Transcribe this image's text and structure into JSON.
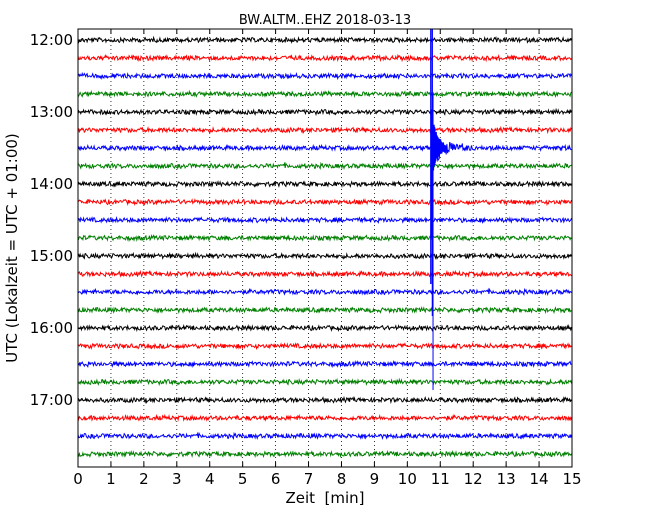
{
  "chart_data": {
    "type": "line",
    "title": "BW.ALTM..EHZ 2018-03-13",
    "xlabel": "Zeit  [min]",
    "ylabel": "UTC (Lokalzeit = UTC + 01:00)",
    "xlim": [
      0,
      15
    ],
    "x_ticks": [
      "0",
      "1",
      "2",
      "3",
      "4",
      "5",
      "6",
      "7",
      "8",
      "9",
      "10",
      "11",
      "12",
      "13",
      "14",
      "15"
    ],
    "y_ticks": [
      "12:00",
      "13:00",
      "14:00",
      "15:00",
      "16:00",
      "17:00"
    ],
    "rows_per_hour": 4,
    "row_colors": [
      "#000000",
      "#ff0000",
      "#0000ff",
      "#008000"
    ],
    "grid": "vertical-dotted",
    "rows": [
      {
        "start": "12:00",
        "color": "#000000"
      },
      {
        "start": "12:15",
        "color": "#ff0000"
      },
      {
        "start": "12:30",
        "color": "#0000ff"
      },
      {
        "start": "12:45",
        "color": "#008000"
      },
      {
        "start": "13:00",
        "color": "#000000"
      },
      {
        "start": "13:15",
        "color": "#ff0000"
      },
      {
        "start": "13:30",
        "color": "#0000ff"
      },
      {
        "start": "13:45",
        "color": "#008000"
      },
      {
        "start": "14:00",
        "color": "#000000"
      },
      {
        "start": "14:15",
        "color": "#ff0000"
      },
      {
        "start": "14:30",
        "color": "#0000ff"
      },
      {
        "start": "14:45",
        "color": "#008000"
      },
      {
        "start": "15:00",
        "color": "#000000"
      },
      {
        "start": "15:15",
        "color": "#ff0000"
      },
      {
        "start": "15:30",
        "color": "#0000ff"
      },
      {
        "start": "15:45",
        "color": "#008000"
      },
      {
        "start": "16:00",
        "color": "#000000"
      },
      {
        "start": "16:15",
        "color": "#ff0000"
      },
      {
        "start": "16:30",
        "color": "#0000ff"
      },
      {
        "start": "16:45",
        "color": "#008000"
      },
      {
        "start": "17:00",
        "color": "#000000"
      },
      {
        "start": "17:15",
        "color": "#ff0000"
      },
      {
        "start": "17:30",
        "color": "#0000ff"
      },
      {
        "start": "17:45",
        "color": "#008000"
      }
    ],
    "event": {
      "row_start": "13:30",
      "onset_min": 10.75,
      "color": "#0000ff"
    }
  }
}
